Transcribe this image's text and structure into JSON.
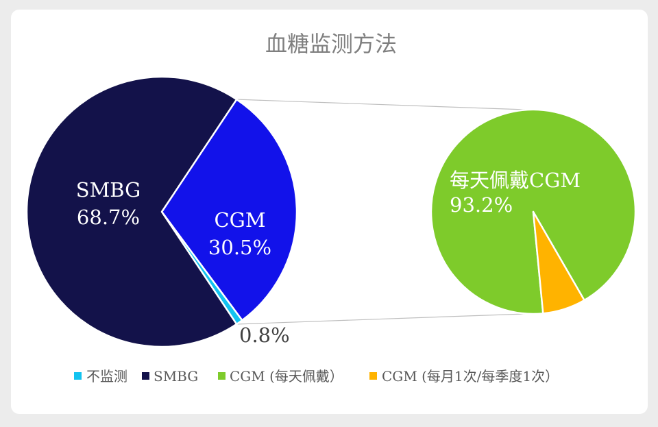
{
  "chart_data": {
    "type": "pie",
    "variant": "pie-of-pie",
    "title": "血糖监测方法",
    "primary": {
      "slices": [
        {
          "key": "cgm",
          "name": "CGM",
          "value": 30.5,
          "label": "30.5%",
          "color": "#1212ea"
        },
        {
          "key": "none",
          "name": "不监测",
          "value": 0.8,
          "label": "0.8%",
          "color": "#12c3f0"
        },
        {
          "key": "smbg",
          "name": "SMBG",
          "value": 68.7,
          "label": "68.7%",
          "color": "#13124a"
        }
      ]
    },
    "secondary": {
      "parent": "CGM",
      "slices": [
        {
          "key": "daily",
          "name": "每天佩戴CGM",
          "value": 93.2,
          "label": "93.2%",
          "color": "#7ecb2b"
        },
        {
          "key": "periodic",
          "value": 6.8,
          "color": "#ffb300"
        }
      ]
    },
    "legend": {
      "position": "bottom",
      "items": [
        {
          "label": "不监测",
          "color": "#12c3f0"
        },
        {
          "label": "SMBG",
          "color": "#13124a"
        },
        {
          "label": "CGM (每天佩戴）",
          "color": "#7ecb2b"
        },
        {
          "label": "CGM (每月1次/每季度1次）",
          "color": "#ffb300"
        }
      ]
    }
  }
}
